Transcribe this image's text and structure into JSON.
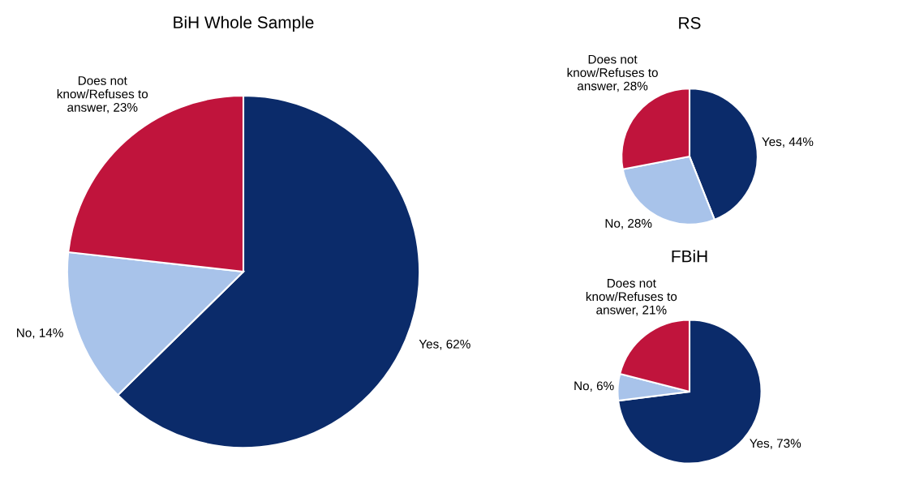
{
  "chart_data": [
    {
      "type": "pie",
      "title": "BiH Whole Sample",
      "categories": [
        "Yes",
        "No",
        "Does not know/Refuses to answer"
      ],
      "values": [
        62,
        14,
        23
      ],
      "colors": [
        "#0b2b6a",
        "#a8c3ea",
        "#c0143c"
      ],
      "value_labels": [
        "62%",
        "14%",
        "23%"
      ]
    },
    {
      "type": "pie",
      "title": "RS",
      "categories": [
        "Yes",
        "No",
        "Does not know/Refuses to answer"
      ],
      "values": [
        44,
        28,
        28
      ],
      "colors": [
        "#0b2b6a",
        "#a8c3ea",
        "#c0143c"
      ],
      "value_labels": [
        "44%",
        "28%",
        "28%"
      ]
    },
    {
      "type": "pie",
      "title": "FBiH",
      "categories": [
        "Yes",
        "No",
        "Does not know/Refuses to answer"
      ],
      "values": [
        73,
        6,
        21
      ],
      "colors": [
        "#0b2b6a",
        "#a8c3ea",
        "#c0143c"
      ],
      "value_labels": [
        "73%",
        "6%",
        "21%"
      ]
    }
  ]
}
